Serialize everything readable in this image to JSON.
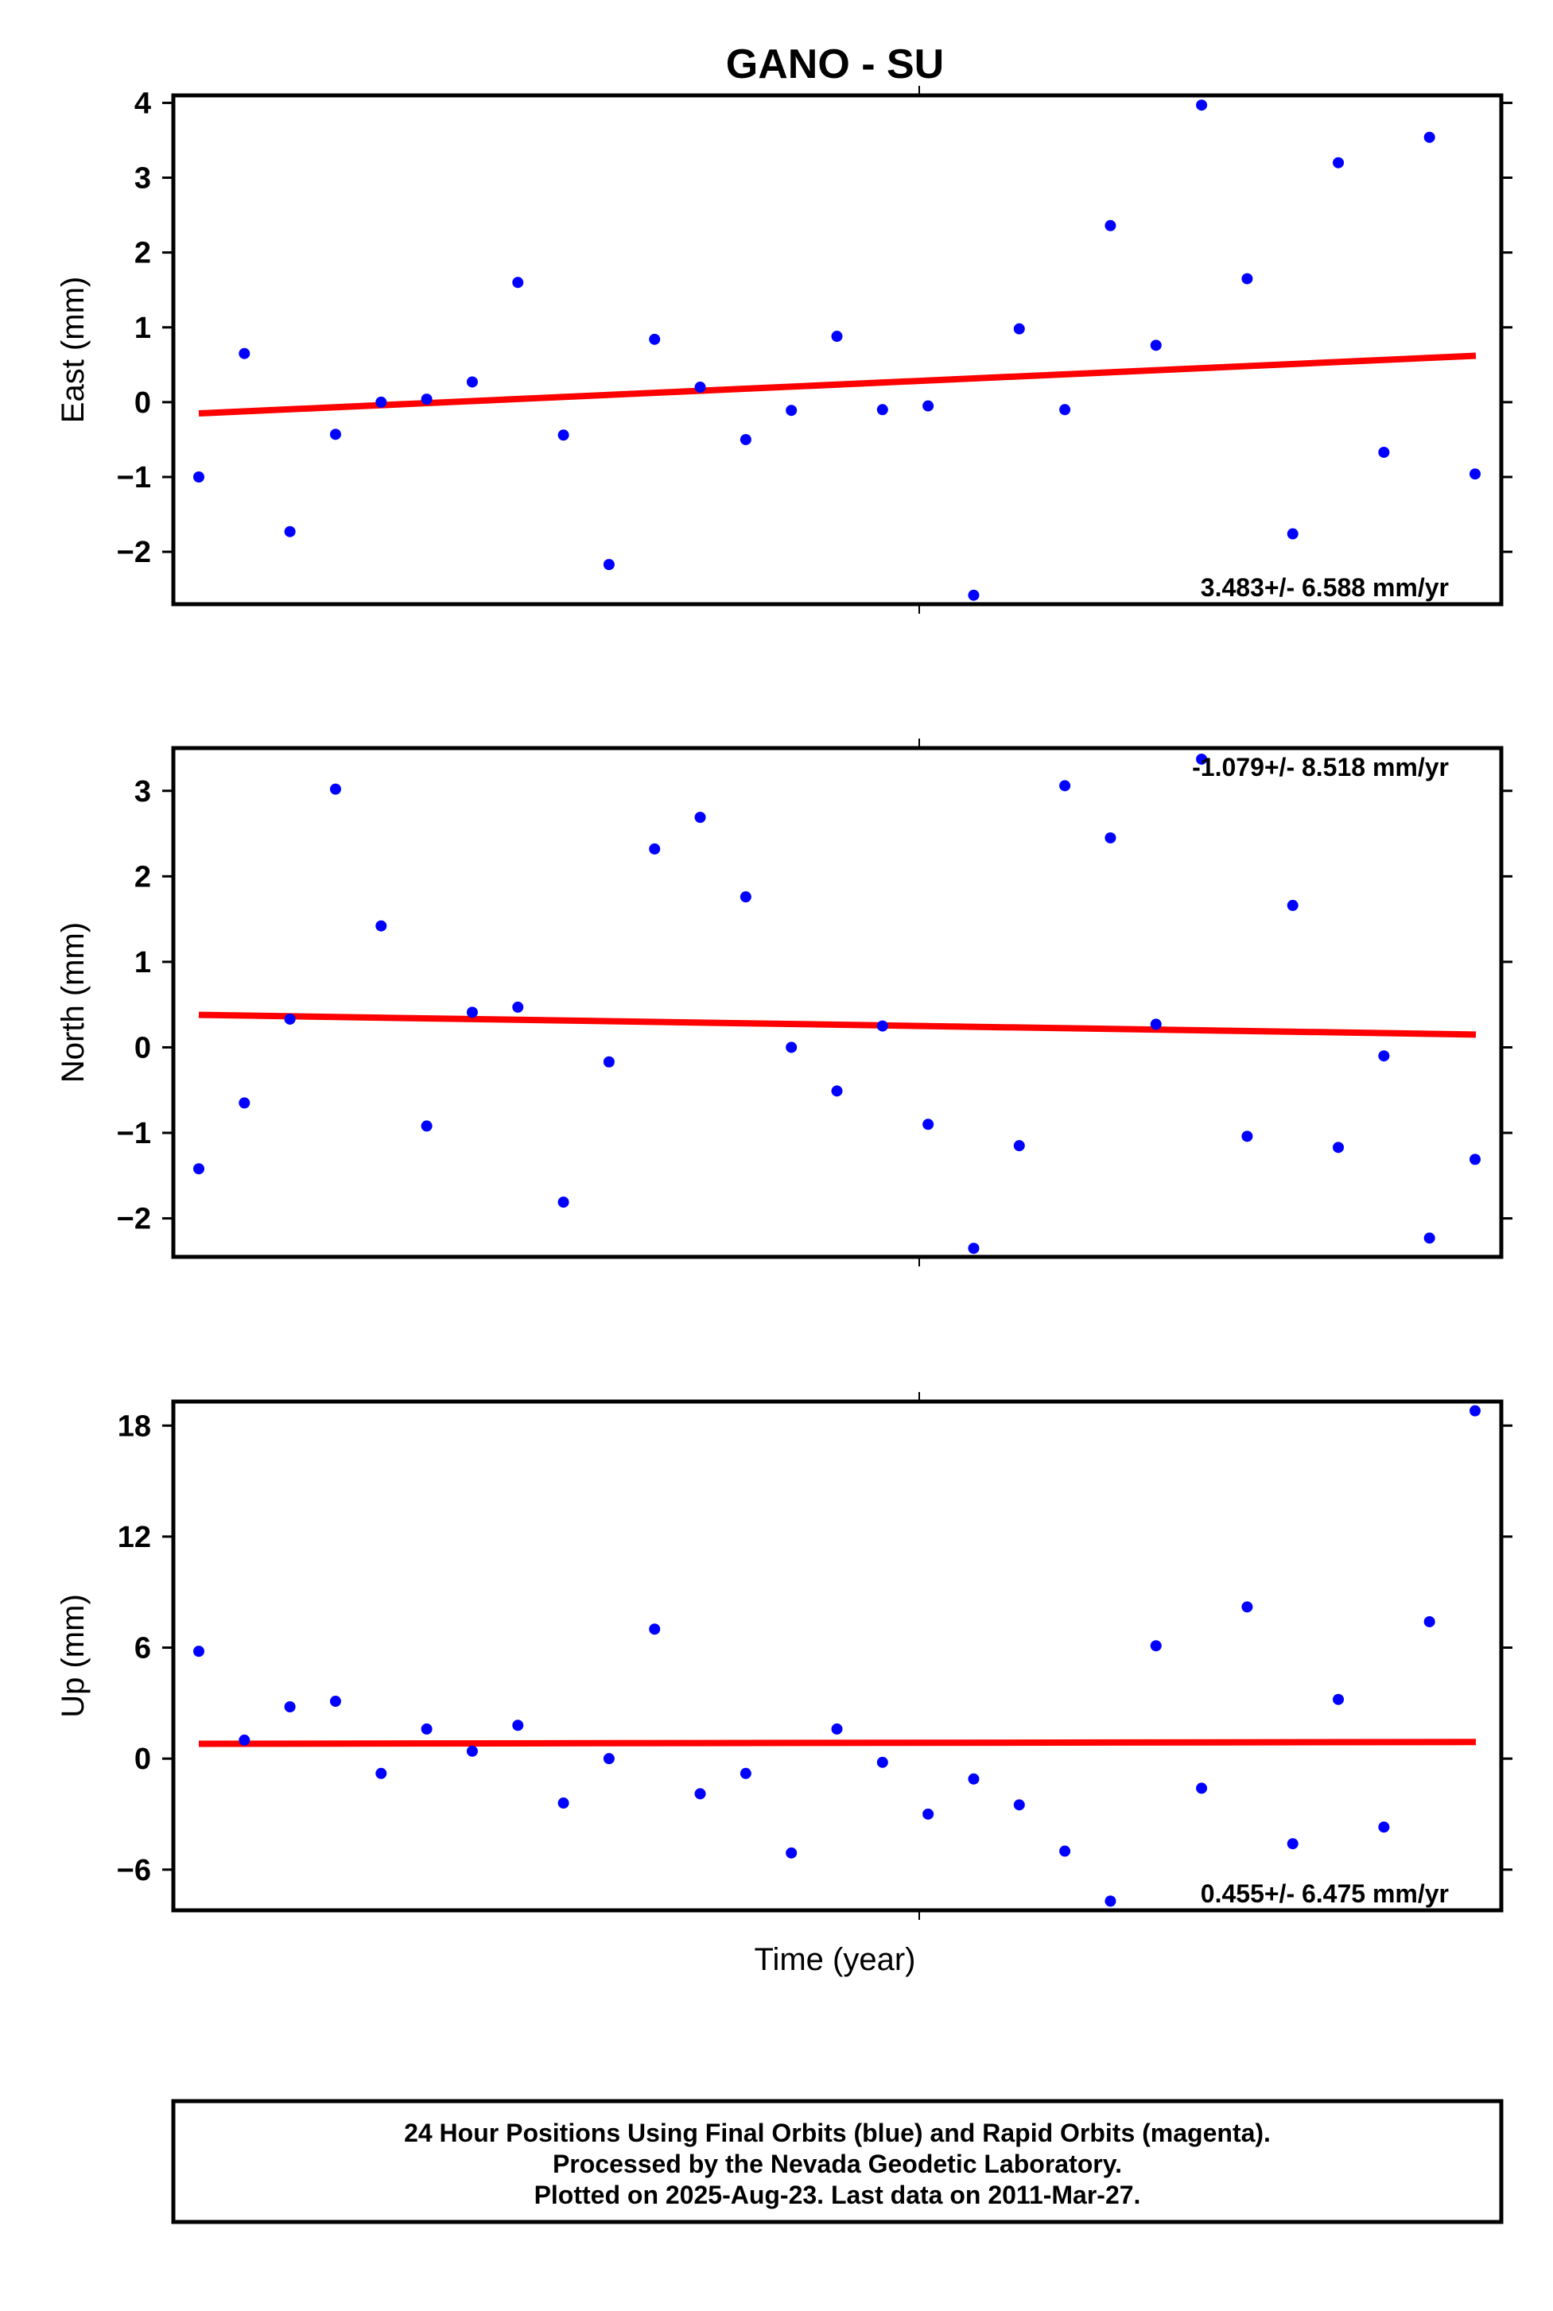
{
  "title": "GANO - SU",
  "xlabel": "Time (year)",
  "footer": {
    "line1": "24 Hour Positions Using Final Orbits (blue) and Rapid Orbits (magenta).",
    "line2": "Processed by the Nevada Geodetic Laboratory.",
    "line3": "Plotted on 2025-Aug-23. Last data on 2011-Mar-27."
  },
  "colors": {
    "points": "#0000ff",
    "trend": "#ff0000",
    "frame": "#000000"
  },
  "chart_data": [
    {
      "type": "scatter",
      "ylabel": "East (mm)",
      "ylim": [
        -2.7,
        4.1
      ],
      "yticks": [
        -2,
        -1,
        0,
        1,
        2,
        3,
        4
      ],
      "ytick_labels": [
        "−2",
        "−1",
        "0",
        "1",
        "2",
        "3",
        "4"
      ],
      "rate_text": "3.483+/- 6.588 mm/yr",
      "rate_position": "bottom-right",
      "values": [
        -1.0,
        0.65,
        -1.73,
        -0.43,
        0.0,
        0.04,
        0.27,
        1.6,
        -0.44,
        -2.17,
        0.84,
        0.2,
        -0.5,
        -0.11,
        0.88,
        -0.1,
        -0.05,
        -2.58,
        0.98,
        -0.1,
        2.36,
        0.76,
        3.97,
        1.65,
        -1.76,
        3.2,
        -0.67,
        3.54,
        -0.96
      ],
      "trend": [
        -0.15,
        0.62
      ]
    },
    {
      "type": "scatter",
      "ylabel": "North (mm)",
      "ylim": [
        -2.45,
        3.5
      ],
      "yticks": [
        -2,
        -1,
        0,
        1,
        2,
        3
      ],
      "ytick_labels": [
        "−2",
        "−1",
        "0",
        "1",
        "2",
        "3"
      ],
      "rate_text": "-1.079+/- 8.518 mm/yr",
      "rate_position": "top-right",
      "values": [
        -1.42,
        -0.65,
        0.33,
        3.02,
        1.42,
        -0.92,
        0.41,
        0.47,
        -1.81,
        -0.17,
        2.32,
        2.69,
        1.76,
        0.0,
        -0.51,
        0.25,
        -0.9,
        -2.35,
        -1.15,
        3.06,
        2.45,
        0.27,
        3.37,
        -1.04,
        1.66,
        -1.17,
        -0.1,
        -2.23,
        -1.31
      ],
      "trend": [
        0.38,
        0.15
      ]
    },
    {
      "type": "scatter",
      "ylabel": "Up (mm)",
      "ylim": [
        -8.2,
        19.3
      ],
      "yticks": [
        -6,
        0,
        6,
        12,
        18
      ],
      "ytick_labels": [
        "−6",
        "0",
        "6",
        "12",
        "18"
      ],
      "rate_text": "0.455+/- 6.475 mm/yr",
      "rate_position": "bottom-right",
      "values": [
        5.8,
        1.0,
        2.8,
        3.1,
        -0.8,
        1.6,
        0.4,
        1.8,
        -2.4,
        0.0,
        7.0,
        -1.9,
        -0.8,
        -5.1,
        1.6,
        -0.2,
        -3.0,
        -1.1,
        -2.5,
        -5.0,
        -7.7,
        6.1,
        -1.6,
        8.2,
        -4.6,
        3.2,
        -3.7,
        7.4,
        18.8
      ],
      "trend": [
        0.8,
        0.9
      ]
    }
  ]
}
